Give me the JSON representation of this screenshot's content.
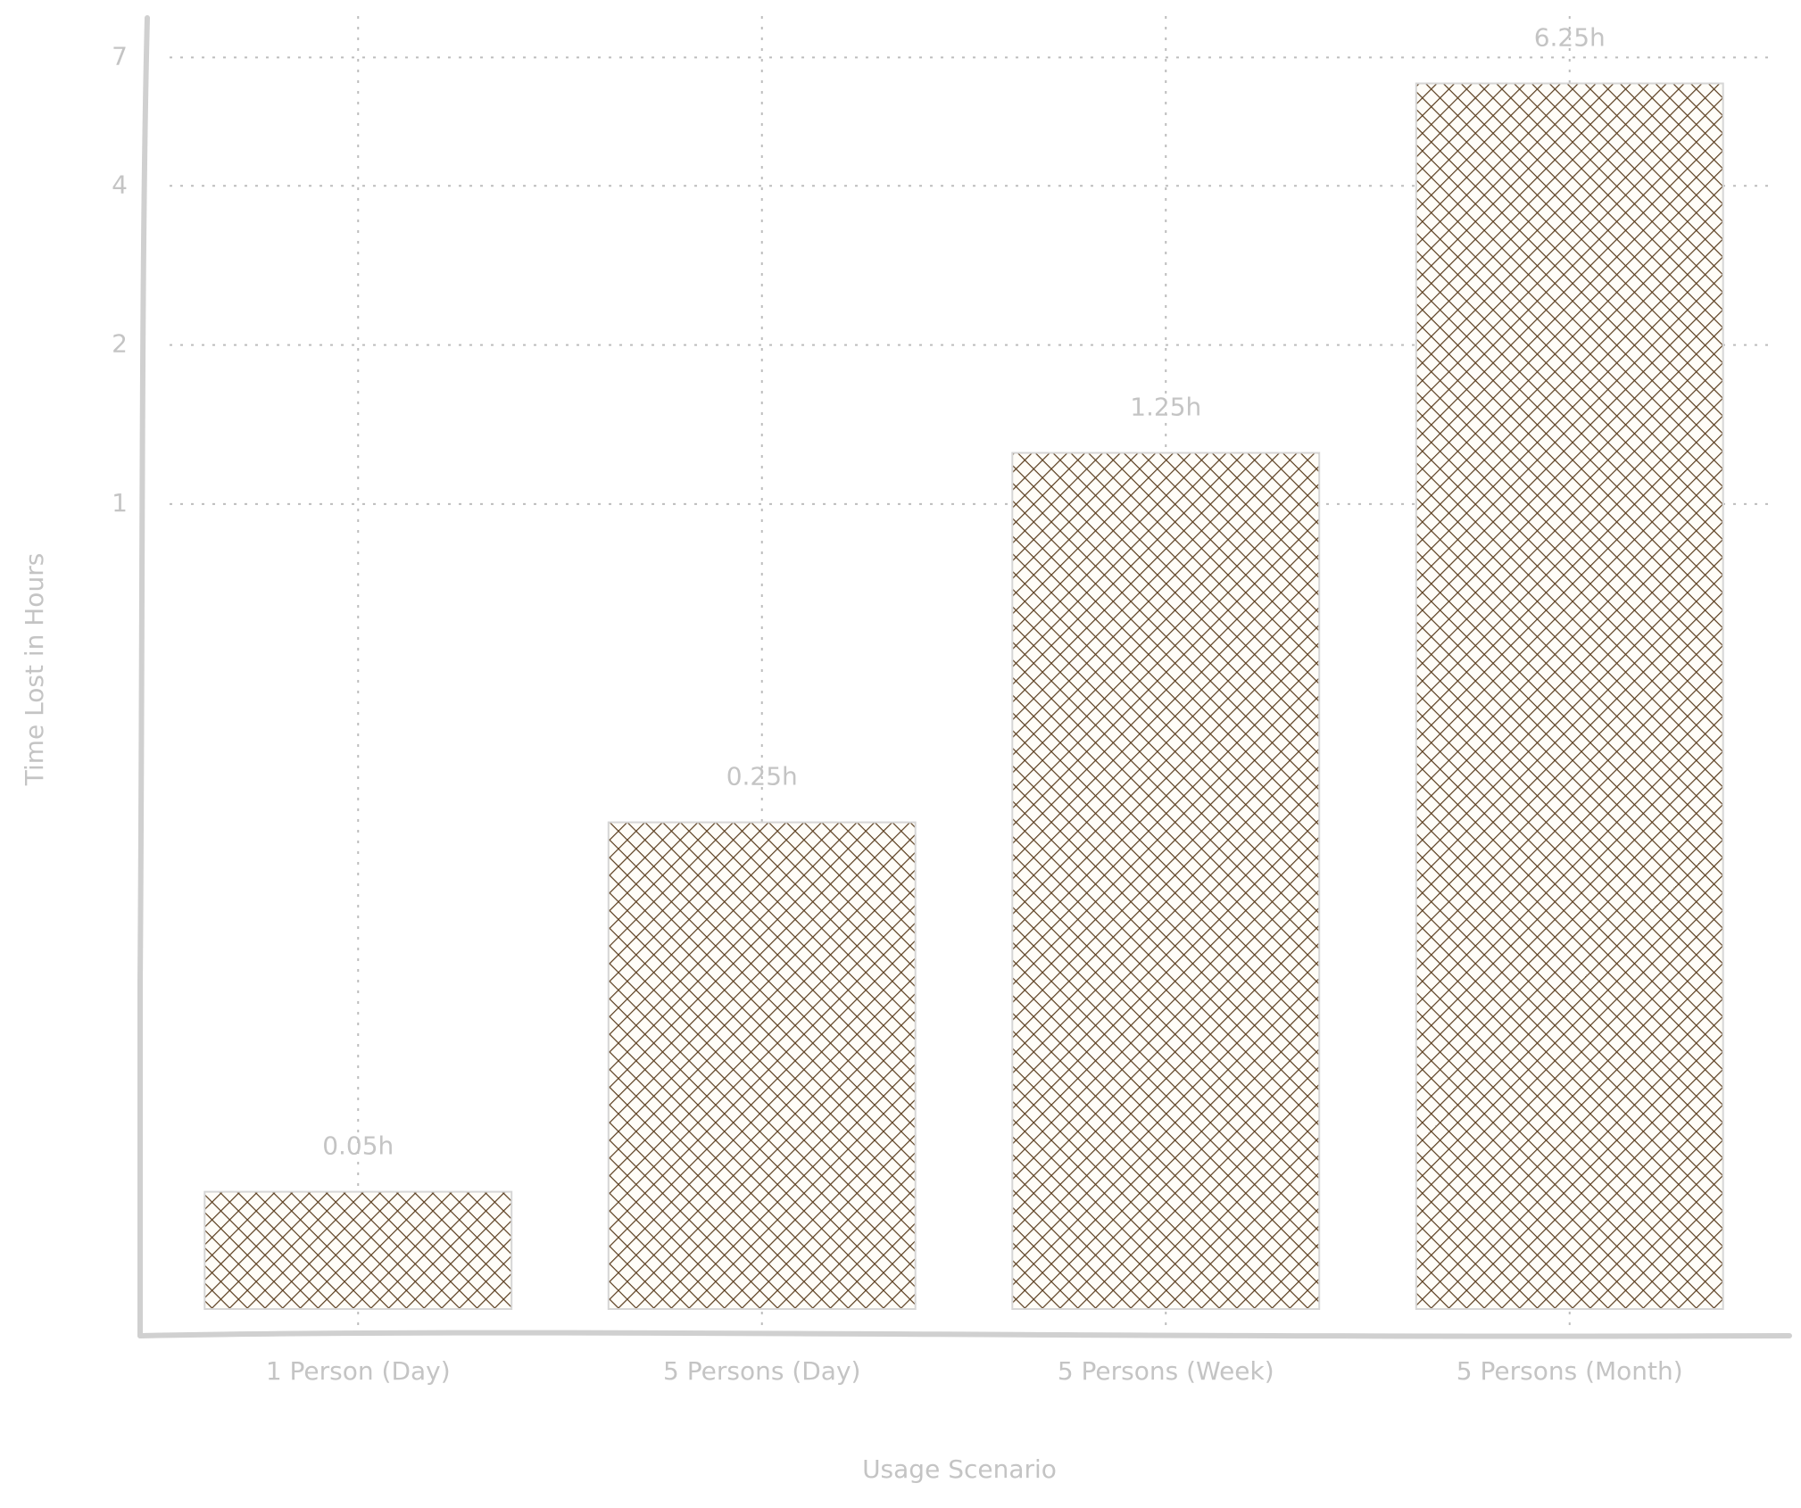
{
  "chart_data": {
    "type": "bar",
    "x_label": "Usage Scenario",
    "y_label": "Time Lost in Hours",
    "categories": [
      "1 Person (Day)",
      "5 Persons (Day)",
      "5 Persons (Week)",
      "5 Persons (Month)"
    ],
    "values": [
      0.05,
      0.25,
      1.25,
      6.25
    ],
    "value_labels": [
      "0.05h",
      "0.25h",
      "1.25h",
      "6.25h"
    ],
    "color": "#5a3d1e",
    "log_scale": true,
    "ylim": [
      0.03,
      8
    ],
    "yticks": [
      1,
      2,
      4,
      7
    ],
    "grid": true
  }
}
